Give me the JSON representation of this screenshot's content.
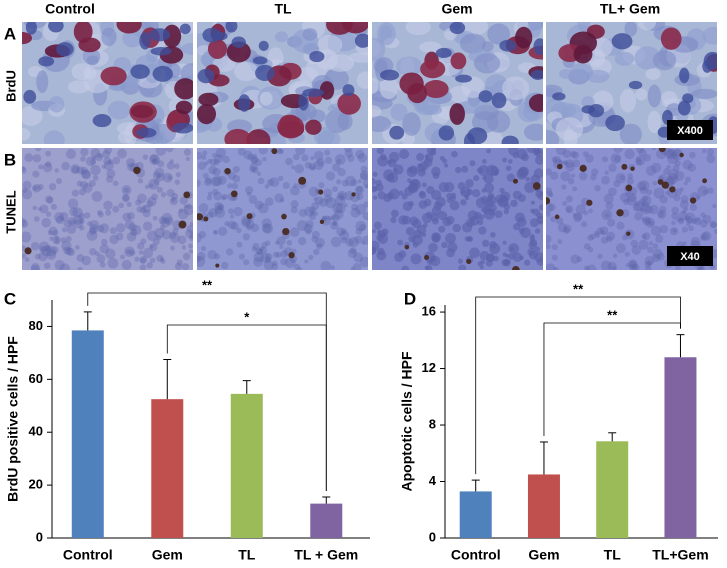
{
  "columns": [
    "Control",
    "TL",
    "Gem",
    "TL+ Gem"
  ],
  "rows": [
    {
      "letter": "A",
      "stain": "BrdU",
      "magnification": "X400"
    },
    {
      "letter": "B",
      "stain": "TUNEL",
      "magnification": "X40"
    }
  ],
  "chart_data": [
    {
      "type": "bar",
      "panel": "C",
      "ylabel": "BrdU positive cells / HPF",
      "categories": [
        "Control",
        "Gem",
        "TL",
        "TL + Gem"
      ],
      "values": [
        78.5,
        52.5,
        54.5,
        13
      ],
      "errors": [
        7,
        15,
        5,
        2.5
      ],
      "colors": [
        "#4f81bd",
        "#c0504d",
        "#9bbb59",
        "#8064a2"
      ],
      "ylim": [
        0,
        90
      ],
      "yticks": [
        0,
        20,
        40,
        60,
        80
      ],
      "annotations": [
        "**",
        "*"
      ]
    },
    {
      "type": "bar",
      "panel": "D",
      "ylabel": "Apoptotic  cells / HPF",
      "categories": [
        "Control",
        "Gem",
        "TL",
        "TL+Gem"
      ],
      "values": [
        3.3,
        4.5,
        6.85,
        12.8
      ],
      "errors": [
        0.8,
        2.3,
        0.6,
        1.6
      ],
      "colors": [
        "#4f81bd",
        "#c0504d",
        "#9bbb59",
        "#8064a2"
      ],
      "ylim": [
        0,
        16.5
      ],
      "yticks": [
        0,
        4,
        8,
        12,
        16
      ],
      "annotations": [
        "**",
        "**"
      ]
    }
  ]
}
